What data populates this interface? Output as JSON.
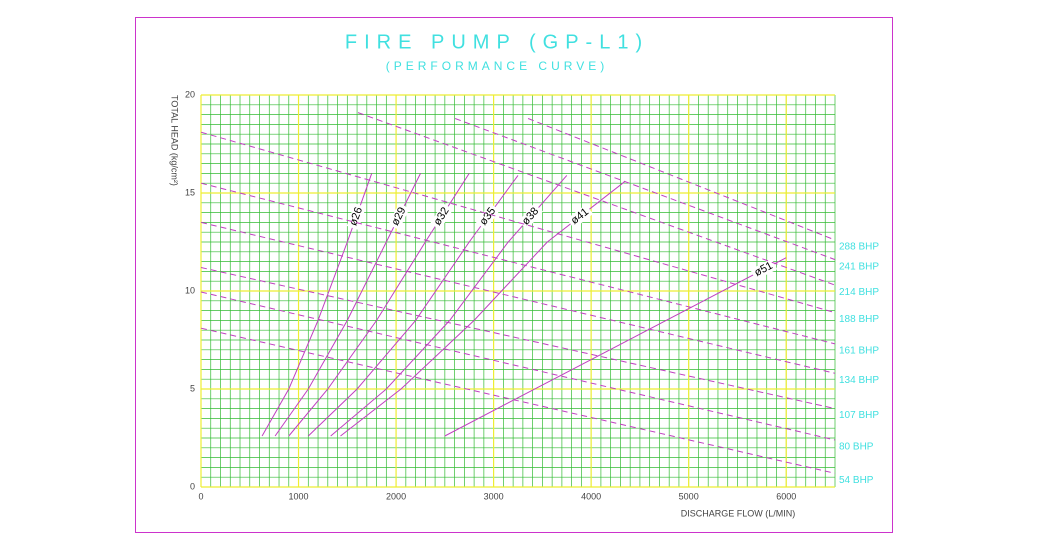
{
  "chart_data": {
    "type": "line",
    "title": "FIRE PUMP (GP-L1)",
    "subtitle": "(PERFORMANCE CURVE)",
    "x_label": "DISCHARGE FLOW (L/MIN)",
    "y_label": "TOTAL HEAD (kg/cm²)",
    "xlim": [
      0,
      6500
    ],
    "ylim": [
      0,
      20
    ],
    "xticks": [
      0,
      1000,
      2000,
      3000,
      4000,
      5000,
      6000
    ],
    "yticks": [
      0,
      5,
      10,
      15,
      20
    ],
    "grid": true,
    "series": [
      {
        "name": "ø26",
        "color": "#c040c0",
        "style": "solid",
        "x": [
          626,
          900,
          1200,
          1500,
          1750
        ],
        "values": [
          2.6,
          5,
          8.5,
          12.5,
          16
        ]
      },
      {
        "name": "ø29",
        "color": "#c040c0",
        "style": "solid",
        "x": [
          760,
          1100,
          1500,
          1900,
          2250
        ],
        "values": [
          2.6,
          5,
          8.5,
          12.5,
          16
        ]
      },
      {
        "name": "ø32",
        "color": "#c040c0",
        "style": "solid",
        "x": [
          900,
          1300,
          1800,
          2300,
          2750
        ],
        "values": [
          2.6,
          5,
          8.5,
          12.5,
          16
        ]
      },
      {
        "name": "ø35",
        "color": "#c040c0",
        "style": "solid",
        "x": [
          1100,
          1600,
          2200,
          2750,
          3250
        ],
        "values": [
          2.6,
          5,
          8.5,
          12.5,
          15.9
        ]
      },
      {
        "name": "ø38",
        "color": "#c040c0",
        "style": "solid",
        "x": [
          1330,
          1900,
          2550,
          3150,
          3750
        ],
        "values": [
          2.6,
          5,
          8.5,
          12.5,
          15.9
        ]
      },
      {
        "name": "ø41",
        "color": "#c040c0",
        "style": "solid",
        "x": [
          1430,
          2050,
          2800,
          3550,
          4350
        ],
        "values": [
          2.6,
          5,
          8.5,
          12.5,
          15.6
        ]
      },
      {
        "name": "ø51",
        "color": "#c040c0",
        "style": "solid",
        "x": [
          2500,
          6000
        ],
        "values": [
          2.6,
          11.7
        ]
      },
      {
        "name": "54 BHP",
        "color": "#c040c0",
        "style": "dashed",
        "x": [
          0,
          6500
        ],
        "values": [
          8.1,
          0.7
        ]
      },
      {
        "name": "80 BHP",
        "color": "#c040c0",
        "style": "dashed",
        "x": [
          0,
          6500
        ],
        "values": [
          9.95,
          2.4
        ]
      },
      {
        "name": "107 BHP",
        "color": "#c040c0",
        "style": "dashed",
        "x": [
          0,
          6500
        ],
        "values": [
          11.2,
          4.0
        ]
      },
      {
        "name": "134 BHP",
        "color": "#c040c0",
        "style": "dashed",
        "x": [
          0,
          6500
        ],
        "values": [
          13.5,
          5.8
        ]
      },
      {
        "name": "161 BHP",
        "color": "#c040c0",
        "style": "dashed",
        "x": [
          0,
          6500
        ],
        "values": [
          15.5,
          7.3
        ]
      },
      {
        "name": "188 BHP",
        "color": "#c040c0",
        "style": "dashed",
        "x": [
          0,
          6500
        ],
        "values": [
          18.1,
          8.9
        ]
      },
      {
        "name": "214 BHP",
        "color": "#c040c0",
        "style": "dashed",
        "x": [
          1610,
          6500
        ],
        "values": [
          19.1,
          10.3
        ]
      },
      {
        "name": "241 BHP",
        "color": "#c040c0",
        "style": "dashed",
        "x": [
          2605,
          6500
        ],
        "values": [
          18.8,
          11.6
        ]
      },
      {
        "name": "288 BHP",
        "color": "#c040c0",
        "style": "dashed",
        "x": [
          3354,
          6500
        ],
        "values": [
          18.8,
          12.6
        ]
      }
    ]
  }
}
